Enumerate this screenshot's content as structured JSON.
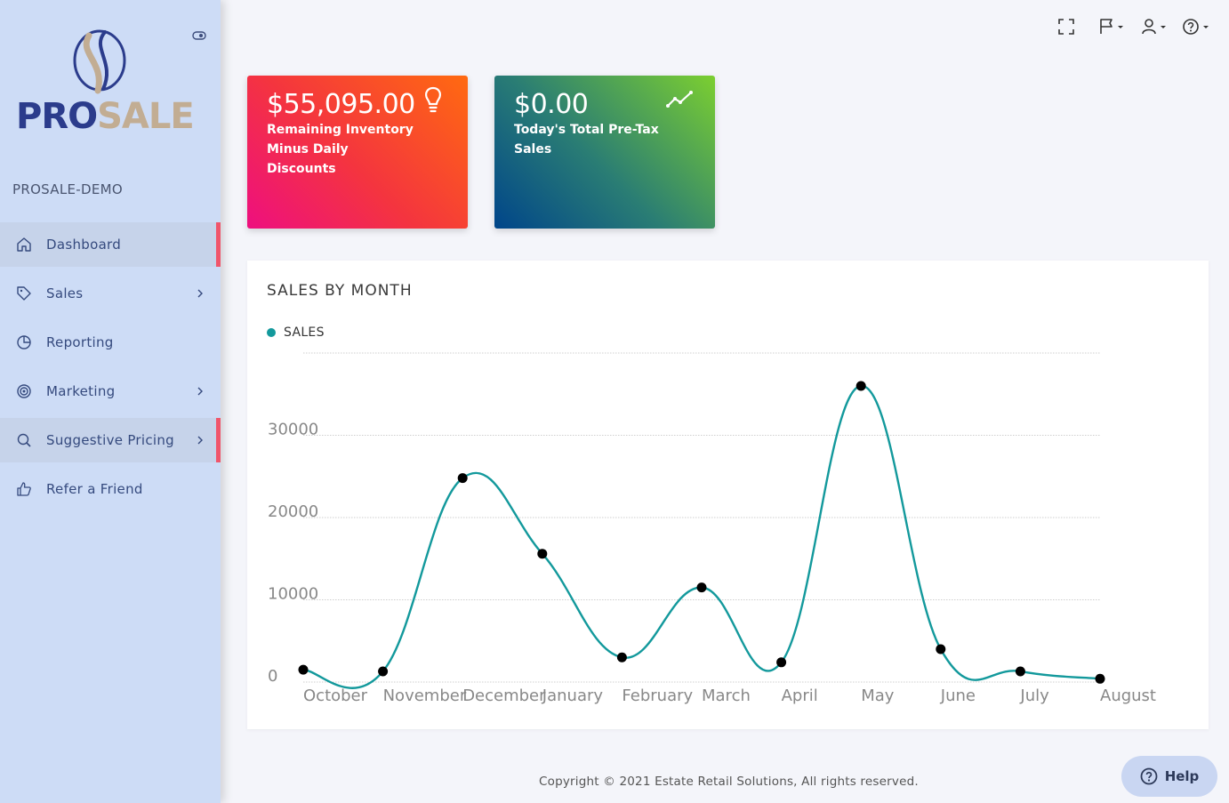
{
  "brand": {
    "logo_pro": "PRO",
    "logo_sale": "SALE",
    "org_name": "PROSALE-DEMO"
  },
  "sidebar": {
    "items": [
      {
        "label": "Dashboard",
        "icon": "home-icon"
      },
      {
        "label": "Sales",
        "icon": "tag-icon"
      },
      {
        "label": "Reporting",
        "icon": "pie-chart-icon"
      },
      {
        "label": "Marketing",
        "icon": "target-icon"
      },
      {
        "label": "Suggestive Pricing",
        "icon": "search-icon"
      },
      {
        "label": "Refer a Friend",
        "icon": "thumbs-up-icon"
      }
    ]
  },
  "cards": [
    {
      "value": "$55,095.00",
      "desc": "Remaining Inventory Minus Daily Discounts",
      "icon": "lightbulb-icon"
    },
    {
      "value": "$0.00",
      "desc": "Today's Total Pre-Tax Sales",
      "icon": "trend-line-icon"
    }
  ],
  "chart": {
    "title": "SALES BY MONTH",
    "legend": "SALES"
  },
  "chart_data": {
    "type": "line",
    "title": "SALES BY MONTH",
    "categories": [
      "October",
      "November",
      "December",
      "January",
      "February",
      "March",
      "April",
      "May",
      "June",
      "July",
      "August"
    ],
    "series": [
      {
        "name": "SALES",
        "values": [
          1500,
          1300,
          24800,
          15600,
          3000,
          11500,
          2400,
          36000,
          4000,
          1300,
          400
        ]
      }
    ],
    "ylim": [
      0,
      40000
    ],
    "yticks": [
      0,
      10000,
      20000,
      30000
    ],
    "grid": true,
    "legend_position": "top-left",
    "line_color": "#13999c",
    "point_color": "#000000"
  },
  "footer": {
    "copyright": "Copyright © 2021 Estate Retail Solutions, All rights reserved."
  },
  "help": {
    "label": "Help"
  }
}
